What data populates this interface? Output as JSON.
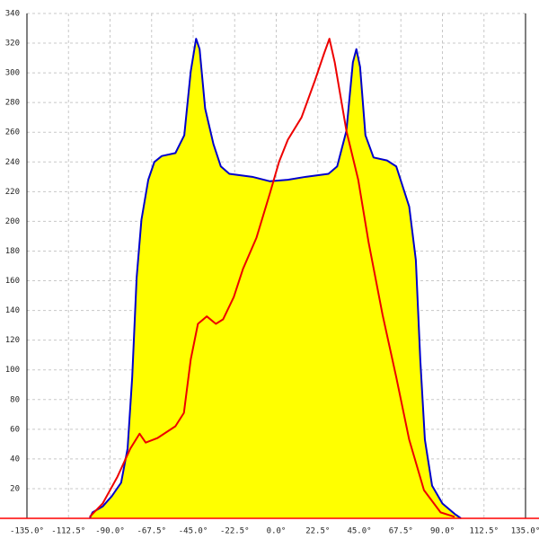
{
  "chart_data": {
    "type": "area",
    "xlim": [
      -135,
      135
    ],
    "xticks": [
      {
        "value": -135,
        "label": "-135.0°"
      },
      {
        "value": -112.5,
        "label": "-112.5°"
      },
      {
        "value": -90,
        "label": "-90.0°"
      },
      {
        "value": -67.5,
        "label": "-67.5°"
      },
      {
        "value": -45,
        "label": "-45.0°"
      },
      {
        "value": -22.5,
        "label": "-22.5°"
      },
      {
        "value": 0,
        "label": "0.0°"
      },
      {
        "value": 22.5,
        "label": "22.5°"
      },
      {
        "value": 45,
        "label": "45.0°"
      },
      {
        "value": 67.5,
        "label": "67.5°"
      },
      {
        "value": 90,
        "label": "90.0°"
      },
      {
        "value": 112.5,
        "label": "112.5°"
      },
      {
        "value": 135,
        "label": "135.0°"
      }
    ],
    "ylim": [
      0,
      340
    ],
    "yticks": [
      20,
      40,
      60,
      80,
      100,
      120,
      140,
      160,
      180,
      200,
      220,
      240,
      260,
      280,
      300,
      320,
      340
    ],
    "grid": true,
    "axis_color": "#ff0000",
    "series": [
      {
        "color": "#0000cc",
        "fill": "#ffff00",
        "x": [
          -101,
          -99.5,
          -94,
          -89,
          -84,
          -80.5,
          -78,
          -75.6,
          -73,
          -69.3,
          -66,
          -62,
          -54.6,
          -49.8,
          -46.3,
          -43.4,
          -41.5,
          -38.5,
          -34,
          -30,
          -25.4,
          -13,
          -3.4,
          6.3,
          16,
          28.3,
          33,
          38,
          41.5,
          43.4,
          45.4,
          48.3,
          52.7,
          60,
          65,
          72,
          75.6,
          78,
          80.5,
          84.4,
          90,
          96.6,
          100
        ],
        "values": [
          0,
          4,
          8,
          15,
          24,
          47,
          95,
          162,
          201,
          228,
          240,
          244,
          246,
          258,
          301,
          323,
          316,
          276,
          252,
          237,
          232,
          230,
          227,
          228,
          230,
          232,
          237,
          261,
          307,
          316,
          304,
          258,
          243,
          241,
          237,
          210,
          174,
          107,
          53,
          22,
          10,
          3,
          0
        ]
      },
      {
        "color": "#ee0000",
        "x": [
          -101,
          -94,
          -86,
          -79,
          -74,
          -70.7,
          -64.4,
          -54.6,
          -50,
          -46.3,
          -42.4,
          -37.6,
          -32.7,
          -28.8,
          -23,
          -18,
          -10.7,
          -3.4,
          1.5,
          6.3,
          13.7,
          21,
          25.9,
          28.8,
          31.7,
          38,
          44.4,
          50,
          57.6,
          65,
          72,
          80,
          89,
          96.6
        ],
        "values": [
          1,
          10,
          28,
          47,
          57,
          51,
          54,
          62,
          71,
          107,
          131,
          136,
          131,
          134,
          149,
          168,
          189,
          219,
          240,
          255,
          270,
          295,
          313,
          323,
          307,
          261,
          228,
          186,
          137,
          95,
          53,
          19,
          4,
          1
        ]
      }
    ]
  }
}
